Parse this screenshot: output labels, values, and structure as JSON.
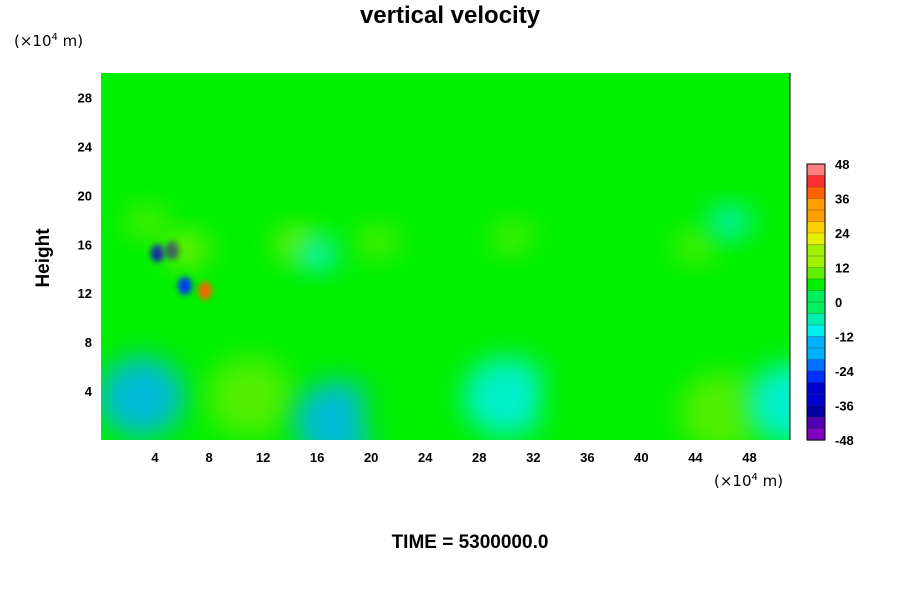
{
  "chart_data": {
    "type": "heatmap",
    "title": "vertical velocity",
    "ylabel": "Height",
    "xunit": "(×10⁴ m)",
    "yunit": "(×10⁴ m)",
    "time_label": "TIME = 5300000.0",
    "xlim": [
      0,
      51
    ],
    "ylim": [
      0,
      30
    ],
    "x_ticks": [
      4,
      8,
      12,
      16,
      20,
      24,
      28,
      32,
      36,
      40,
      44,
      48
    ],
    "y_ticks": [
      4,
      8,
      12,
      16,
      20,
      24,
      28
    ],
    "colorbar": {
      "range": [
        -48,
        48
      ],
      "step": 4,
      "labels": [
        48,
        36,
        24,
        12,
        0,
        -12,
        -24,
        -36,
        -48
      ],
      "colors": [
        "#ff8080",
        "#ff3030",
        "#ff6000",
        "#ffa000",
        "#ffd000",
        "#e8f000",
        "#a0f000",
        "#60f000",
        "#00f000",
        "#00f060",
        "#00f0b0",
        "#00f0f0",
        "#00b0ff",
        "#0070ff",
        "#0030ff",
        "#0000d0",
        "#0000a0",
        "#5000b0",
        "#8000c0"
      ]
    },
    "field": {
      "background": 0,
      "features": [
        {
          "x": 4.2,
          "y": 15.3,
          "value": -32
        },
        {
          "x": 5.3,
          "y": 15.5,
          "value": -36
        },
        {
          "x": 6.3,
          "y": 15.6,
          "value": 18
        },
        {
          "x": 6.2,
          "y": 12.6,
          "value": -28
        },
        {
          "x": 7.7,
          "y": 12.2,
          "value": 40
        },
        {
          "x": 3.4,
          "y": 17.8,
          "value": 10
        },
        {
          "x": 14.5,
          "y": 16.0,
          "value": 18
        },
        {
          "x": 16.0,
          "y": 15.2,
          "value": -8
        },
        {
          "x": 20.5,
          "y": 16.2,
          "value": 10
        },
        {
          "x": 30.5,
          "y": 16.5,
          "value": 12
        },
        {
          "x": 33.5,
          "y": 15.0,
          "value": 6
        },
        {
          "x": 39.0,
          "y": 15.5,
          "value": 8
        },
        {
          "x": 44.0,
          "y": 15.8,
          "value": 12
        },
        {
          "x": 46.5,
          "y": 17.8,
          "value": -8
        },
        {
          "x": 49.5,
          "y": 14.5,
          "value": 8
        },
        {
          "x": 3.0,
          "y": 3.5,
          "value": -14
        },
        {
          "x": 11.0,
          "y": 3.5,
          "value": 12
        },
        {
          "x": 17.5,
          "y": 1.5,
          "value": -16
        },
        {
          "x": 22.5,
          "y": 2.0,
          "value": 6
        },
        {
          "x": 30.0,
          "y": 3.5,
          "value": -10
        },
        {
          "x": 36.0,
          "y": 3.0,
          "value": 8
        },
        {
          "x": 39.5,
          "y": 3.5,
          "value": 8
        },
        {
          "x": 46.0,
          "y": 2.2,
          "value": 12
        },
        {
          "x": 51.0,
          "y": 3.0,
          "value": -8
        }
      ]
    }
  }
}
